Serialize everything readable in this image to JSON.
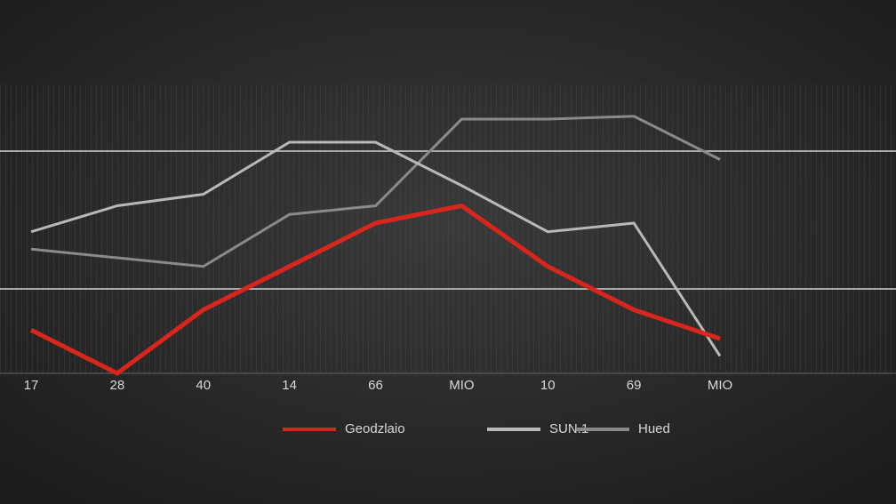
{
  "chart_data": {
    "type": "line",
    "categories": [
      "17",
      "28",
      "40",
      "14",
      "66",
      "MIO",
      "10",
      "69",
      "MIO"
    ],
    "series": [
      {
        "name": "Geodzlaio",
        "color": "#d9261c",
        "values": [
          15,
          0,
          22,
          37,
          52,
          58,
          37,
          22,
          12
        ]
      },
      {
        "name": "SUN.1",
        "color": "#b8b8b8",
        "values": [
          49,
          58,
          62,
          80,
          80,
          65,
          49,
          52,
          6
        ]
      },
      {
        "name": "Hued",
        "color": "#8a8a8a",
        "values": [
          43,
          40,
          37,
          55,
          58,
          88,
          88,
          89,
          74
        ]
      }
    ],
    "ylim": [
      0,
      100
    ]
  }
}
